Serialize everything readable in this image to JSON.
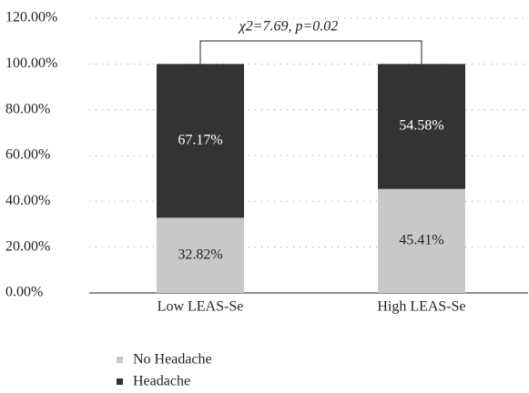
{
  "chart_data": {
    "type": "stacked_bar",
    "annotation": "χ2=7.69, p=0.02",
    "categories": [
      "Low LEAS-Se",
      "High LEAS-Se"
    ],
    "series": [
      {
        "name": "No Headache",
        "color": "#c8c8c8",
        "label_color": "#222222",
        "values": [
          32.82,
          45.41
        ],
        "value_labels": [
          "32.82%",
          "45.41%"
        ]
      },
      {
        "name": "Headache",
        "color": "#333333",
        "label_color": "#ffffff",
        "values": [
          67.17,
          54.58
        ],
        "value_labels": [
          "67.17%",
          "54.58%"
        ]
      }
    ],
    "ylim": [
      0,
      120
    ],
    "yticks": [
      {
        "value": 0,
        "label": "0.00%"
      },
      {
        "value": 20,
        "label": "20.00%"
      },
      {
        "value": 40,
        "label": "40.00%"
      },
      {
        "value": 60,
        "label": "60.00%"
      },
      {
        "value": 80,
        "label": "80.00%"
      },
      {
        "value": 100,
        "label": "100.00%"
      },
      {
        "value": 120,
        "label": "120.00%"
      }
    ],
    "grid": true
  }
}
